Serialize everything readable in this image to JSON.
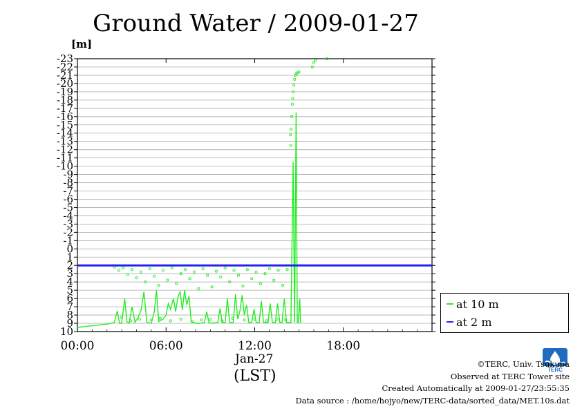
{
  "chart_data": {
    "type": "line",
    "title": "Ground Water / 2009-01-27",
    "ylabel": "[m]",
    "xlabel": "(LST)",
    "xdate": "Jan-27",
    "x_ticks": [
      "00:00",
      "06:00",
      "12:00",
      "18:00"
    ],
    "x_range_hours": [
      0,
      24
    ],
    "y_range": [
      -23,
      10
    ],
    "y_inverted": true,
    "y_ticks": [
      "-23",
      "-22",
      "-21",
      "-20",
      "-19",
      "-18",
      "-17",
      "-16",
      "-15",
      "-14",
      "-13",
      "-12",
      "-11",
      "-10",
      "-9",
      "-8",
      "-7",
      "-6",
      "-5",
      "-4",
      "-3",
      "-2",
      "-1",
      "0",
      "1",
      "2",
      "3",
      "4",
      "5",
      "6",
      "7",
      "8",
      "9",
      "10"
    ],
    "grid": true,
    "legend_position": "right",
    "series": [
      {
        "name": "at 10 m",
        "color": "#22ee22",
        "points": [
          [
            0.0,
            9.5
          ],
          [
            1.0,
            9.3
          ],
          [
            2.0,
            9.1
          ],
          [
            2.5,
            8.9
          ],
          [
            2.7,
            7.5
          ],
          [
            2.85,
            9.0
          ],
          [
            3.0,
            9.0
          ],
          [
            3.2,
            6.0
          ],
          [
            3.35,
            8.8
          ],
          [
            3.5,
            9.0
          ],
          [
            3.7,
            7.0
          ],
          [
            3.9,
            8.9
          ],
          [
            4.1,
            8.3
          ],
          [
            4.3,
            7.5
          ],
          [
            4.5,
            5.2
          ],
          [
            4.7,
            8.9
          ],
          [
            5.0,
            9.0
          ],
          [
            5.2,
            7.6
          ],
          [
            5.35,
            5.0
          ],
          [
            5.5,
            8.8
          ],
          [
            5.8,
            8.5
          ],
          [
            6.0,
            8.0
          ],
          [
            6.15,
            6.6
          ],
          [
            6.3,
            7.3
          ],
          [
            6.5,
            6.0
          ],
          [
            6.65,
            7.6
          ],
          [
            6.8,
            5.8
          ],
          [
            6.95,
            5.2
          ],
          [
            7.1,
            7.4
          ],
          [
            7.25,
            5.0
          ],
          [
            7.4,
            6.8
          ],
          [
            7.55,
            5.7
          ],
          [
            7.7,
            8.8
          ],
          [
            8.0,
            9.0
          ],
          [
            8.3,
            9.0
          ],
          [
            8.6,
            8.9
          ],
          [
            8.75,
            7.6
          ],
          [
            8.9,
            8.9
          ],
          [
            9.2,
            9.0
          ],
          [
            9.5,
            8.9
          ],
          [
            9.65,
            7.2
          ],
          [
            9.8,
            8.9
          ],
          [
            10.0,
            8.9
          ],
          [
            10.15,
            6.0
          ],
          [
            10.3,
            8.9
          ],
          [
            10.55,
            8.9
          ],
          [
            10.7,
            5.5
          ],
          [
            10.85,
            8.5
          ],
          [
            11.0,
            7.5
          ],
          [
            11.15,
            5.6
          ],
          [
            11.3,
            8.0
          ],
          [
            11.45,
            6.8
          ],
          [
            11.6,
            8.9
          ],
          [
            11.8,
            8.9
          ],
          [
            11.95,
            7.3
          ],
          [
            12.1,
            8.9
          ],
          [
            12.3,
            8.9
          ],
          [
            12.45,
            6.3
          ],
          [
            12.6,
            8.9
          ],
          [
            12.9,
            8.9
          ],
          [
            13.05,
            6.6
          ],
          [
            13.2,
            8.9
          ],
          [
            13.4,
            8.9
          ],
          [
            13.55,
            6.6
          ],
          [
            13.7,
            8.9
          ],
          [
            13.85,
            8.9
          ],
          [
            14.0,
            6.0
          ],
          [
            14.15,
            8.9
          ],
          [
            14.3,
            8.9
          ],
          [
            14.45,
            8.9
          ],
          [
            14.6,
            -10.5
          ],
          [
            14.7,
            8.9
          ],
          [
            14.8,
            -16.5
          ],
          [
            14.88,
            8.9
          ],
          [
            14.95,
            8.9
          ],
          [
            15.05,
            6.0
          ],
          [
            15.1,
            9.0
          ]
        ],
        "scatter": [
          [
            14.42,
            -13.8
          ],
          [
            14.44,
            -12.5
          ],
          [
            14.46,
            -14.5
          ],
          [
            14.5,
            -16.0
          ],
          [
            14.55,
            -17.5
          ],
          [
            14.58,
            -18.2
          ],
          [
            14.6,
            -19.0
          ],
          [
            14.65,
            -19.8
          ],
          [
            14.7,
            -20.5
          ],
          [
            14.75,
            -21.0
          ],
          [
            14.82,
            -21.2
          ],
          [
            14.9,
            -21.3
          ],
          [
            15.0,
            -21.4
          ],
          [
            15.9,
            -22.0
          ],
          [
            16.0,
            -22.5
          ],
          [
            16.1,
            -22.8
          ],
          [
            16.9,
            -23.0
          ],
          [
            2.5,
            2.2
          ],
          [
            2.8,
            2.6
          ],
          [
            3.1,
            2.3
          ],
          [
            3.4,
            3.1
          ],
          [
            3.7,
            2.5
          ],
          [
            4.0,
            3.5
          ],
          [
            4.3,
            2.8
          ],
          [
            4.6,
            4.0
          ],
          [
            4.9,
            2.4
          ],
          [
            5.2,
            3.3
          ],
          [
            5.5,
            4.4
          ],
          [
            5.8,
            2.6
          ],
          [
            6.1,
            3.8
          ],
          [
            6.4,
            2.3
          ],
          [
            6.7,
            4.2
          ],
          [
            7.0,
            3.0
          ],
          [
            7.3,
            2.5
          ],
          [
            7.6,
            3.6
          ],
          [
            7.9,
            2.8
          ],
          [
            8.2,
            4.8
          ],
          [
            8.5,
            2.4
          ],
          [
            8.8,
            3.2
          ],
          [
            9.1,
            4.6
          ],
          [
            9.4,
            2.7
          ],
          [
            9.7,
            3.4
          ],
          [
            10.0,
            2.3
          ],
          [
            10.3,
            4.0
          ],
          [
            10.6,
            2.6
          ],
          [
            10.9,
            3.2
          ],
          [
            11.2,
            4.5
          ],
          [
            11.5,
            2.5
          ],
          [
            11.8,
            3.6
          ],
          [
            12.1,
            2.8
          ],
          [
            12.4,
            4.2
          ],
          [
            12.7,
            3.0
          ],
          [
            13.0,
            2.4
          ],
          [
            13.3,
            3.8
          ],
          [
            13.6,
            2.6
          ],
          [
            13.9,
            4.4
          ],
          [
            14.2,
            2.5
          ],
          [
            3.0,
            8.3
          ],
          [
            3.6,
            8.7
          ],
          [
            4.2,
            8.5
          ],
          [
            5.0,
            8.6
          ],
          [
            5.6,
            8.4
          ],
          [
            6.3,
            8.7
          ],
          [
            7.0,
            8.5
          ],
          [
            7.8,
            8.8
          ],
          [
            8.4,
            8.6
          ],
          [
            9.0,
            8.5
          ],
          [
            9.8,
            8.7
          ],
          [
            10.5,
            8.4
          ],
          [
            11.3,
            8.6
          ],
          [
            12.0,
            8.5
          ],
          [
            12.8,
            8.7
          ],
          [
            13.5,
            8.5
          ],
          [
            14.1,
            8.6
          ]
        ]
      },
      {
        "name": "at 2 m",
        "color": "#2222ee",
        "points": [
          [
            0.0,
            2.0
          ],
          [
            24.0,
            2.0
          ]
        ]
      }
    ]
  },
  "credits": {
    "line1": "©TERC, Univ. Tsukuba",
    "line2": "Observed at TERC Tower site",
    "line3": "Created Automatically at 2009-01-27/23:55:35",
    "line4": "Data source : /home/hojyo/new/TERC-data/sorted_data/MET.10s.dat"
  },
  "logo": {
    "text": "TERC",
    "color": "#1f6bbf"
  }
}
